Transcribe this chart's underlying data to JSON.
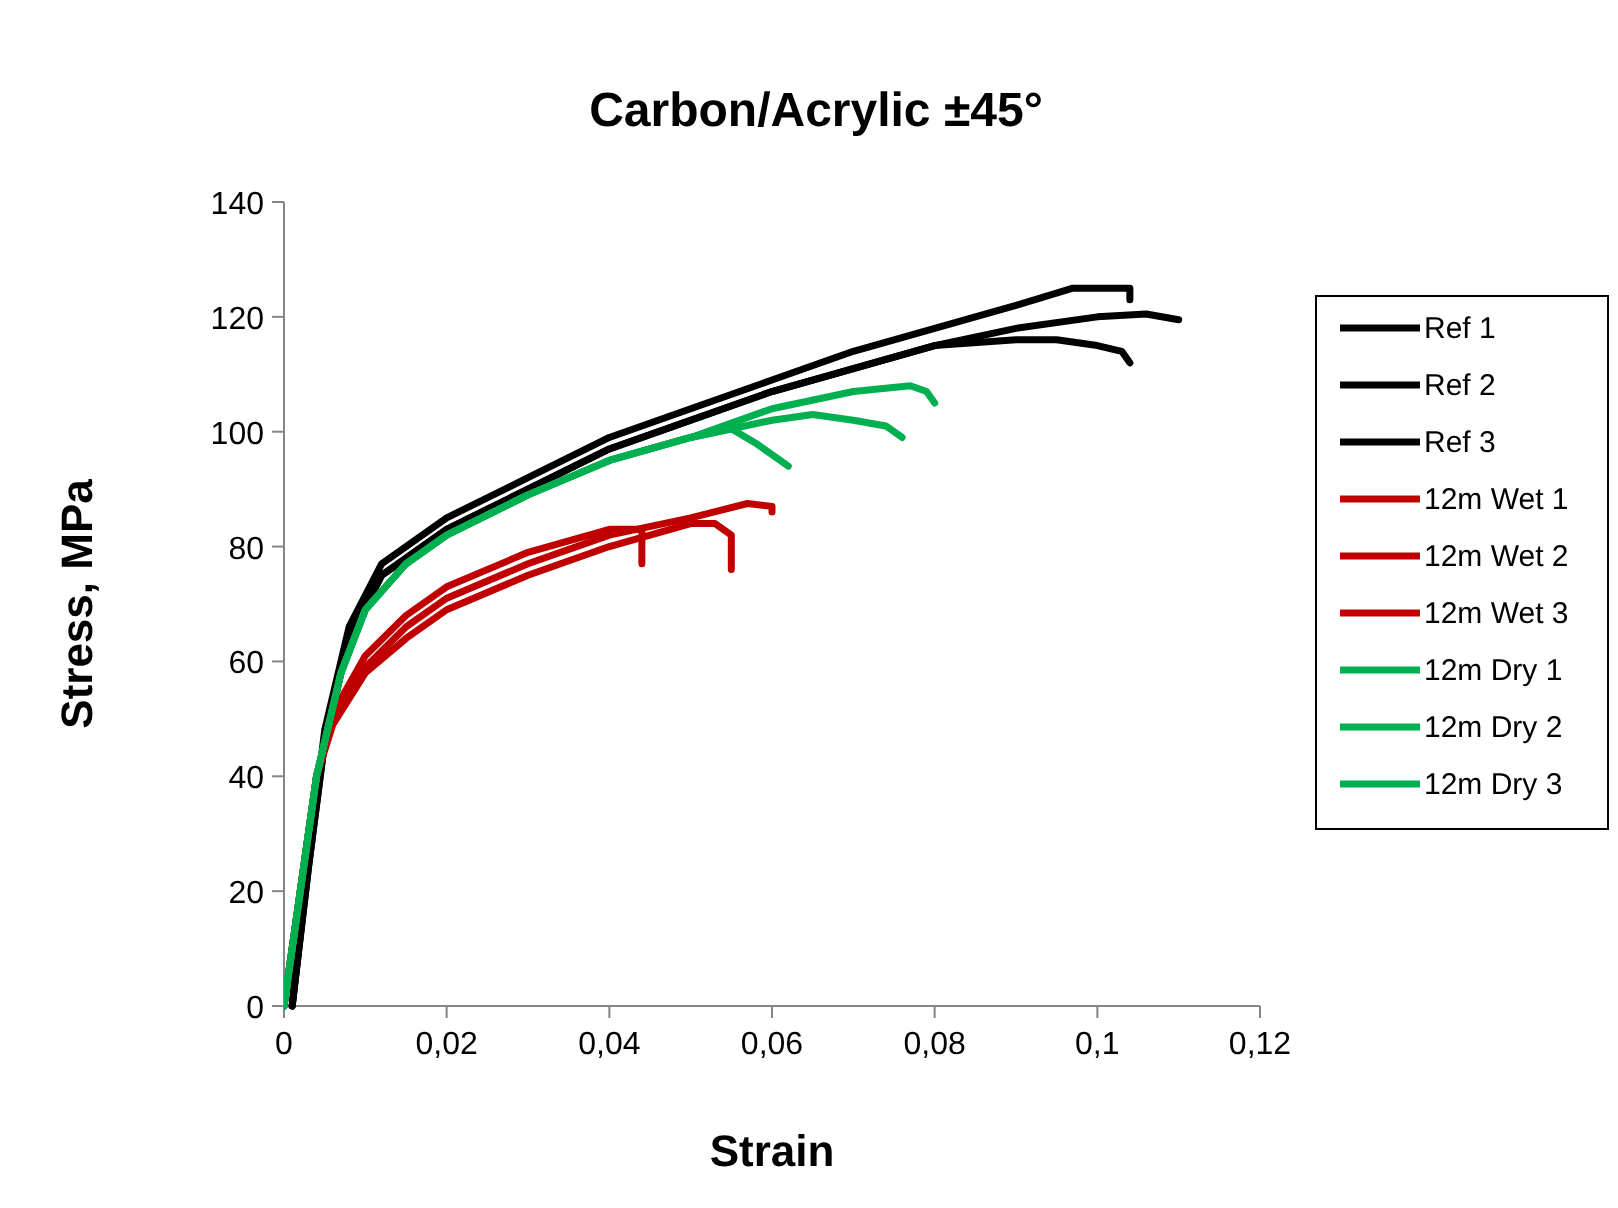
{
  "chart_data": {
    "type": "line",
    "title": "Carbon/Acrylic ±45°",
    "xlabel": "Strain",
    "ylabel": "Stress, MPa",
    "xlim": [
      0,
      0.12
    ],
    "ylim": [
      0,
      140
    ],
    "xticks": [
      0,
      {
        "value": 0.02,
        "label": "0,02"
      },
      {
        "value": 0.04,
        "label": "0,04"
      },
      {
        "value": 0.06,
        "label": "0,06"
      },
      {
        "value": 0.08,
        "label": "0,08"
      },
      {
        "value": 0.1,
        "label": "0,1"
      },
      {
        "value": 0.12,
        "label": "0,12"
      }
    ],
    "yticks": [
      0,
      20,
      40,
      60,
      80,
      100,
      120,
      140
    ],
    "grid": false,
    "legend": "right",
    "marker": "none",
    "line_style": "solid",
    "series": [
      {
        "name": "Ref 1",
        "color": "#000000",
        "x": [
          0.001,
          0.003,
          0.005,
          0.008,
          0.012,
          0.02,
          0.03,
          0.04,
          0.05,
          0.06,
          0.07,
          0.08,
          0.09,
          0.097,
          0.104,
          0.104
        ],
        "values": [
          0,
          25,
          48,
          66,
          77,
          85,
          92,
          99,
          104,
          109,
          114,
          118,
          122,
          125,
          125,
          123
        ]
      },
      {
        "name": "Ref 2",
        "color": "#000000",
        "x": [
          0.001,
          0.003,
          0.005,
          0.008,
          0.012,
          0.02,
          0.03,
          0.04,
          0.05,
          0.06,
          0.07,
          0.08,
          0.09,
          0.1,
          0.106,
          0.11
        ],
        "values": [
          0,
          24,
          46,
          64,
          75,
          83,
          90,
          97,
          102,
          107,
          111,
          115,
          118,
          120,
          120.5,
          119.5
        ]
      },
      {
        "name": "Ref 3",
        "color": "#000000",
        "x": [
          0.001,
          0.003,
          0.005,
          0.008,
          0.012,
          0.02,
          0.03,
          0.04,
          0.05,
          0.06,
          0.07,
          0.08,
          0.09,
          0.095,
          0.1,
          0.103,
          0.104
        ],
        "values": [
          0,
          24,
          46,
          64,
          75,
          83,
          90,
          97,
          102,
          107,
          111,
          115,
          116,
          116,
          115,
          114,
          112
        ]
      },
      {
        "name": "12m Wet 1",
        "color": "#c00000",
        "x": [
          0,
          0.002,
          0.004,
          0.006,
          0.01,
          0.015,
          0.02,
          0.03,
          0.04,
          0.05,
          0.057,
          0.06,
          0.06
        ],
        "values": [
          0,
          20,
          40,
          50,
          59,
          66,
          71,
          77,
          82,
          85,
          87.5,
          87,
          86
        ]
      },
      {
        "name": "12m Wet 2",
        "color": "#c00000",
        "x": [
          0,
          0.002,
          0.004,
          0.006,
          0.01,
          0.015,
          0.02,
          0.03,
          0.04,
          0.05,
          0.053,
          0.055,
          0.055
        ],
        "values": [
          0,
          20,
          40,
          49,
          58,
          64,
          69,
          75,
          80,
          84,
          84,
          82,
          76
        ]
      },
      {
        "name": "12m Wet 3",
        "color": "#c00000",
        "x": [
          0,
          0.002,
          0.004,
          0.006,
          0.01,
          0.015,
          0.02,
          0.03,
          0.04,
          0.044,
          0.044
        ],
        "values": [
          0,
          20,
          40,
          51,
          61,
          68,
          73,
          79,
          83,
          83,
          77
        ]
      },
      {
        "name": "12m Dry 1",
        "color": "#00b050",
        "x": [
          0,
          0.002,
          0.004,
          0.007,
          0.01,
          0.015,
          0.02,
          0.03,
          0.04,
          0.05,
          0.06,
          0.07,
          0.077,
          0.079,
          0.08
        ],
        "values": [
          0,
          20,
          40,
          58,
          69,
          77,
          82,
          89,
          95,
          99,
          104,
          107,
          108,
          107,
          105
        ]
      },
      {
        "name": "12m Dry 2",
        "color": "#00b050",
        "x": [
          0,
          0.002,
          0.004,
          0.007,
          0.01,
          0.015,
          0.02,
          0.03,
          0.04,
          0.05,
          0.06,
          0.065,
          0.07,
          0.074,
          0.076
        ],
        "values": [
          0,
          20,
          40,
          58,
          69,
          77,
          82,
          89,
          95,
          99,
          102,
          103,
          102,
          101,
          99
        ]
      },
      {
        "name": "12m Dry 3",
        "color": "#00b050",
        "x": [
          0,
          0.002,
          0.004,
          0.007,
          0.01,
          0.015,
          0.02,
          0.03,
          0.04,
          0.05,
          0.055,
          0.058,
          0.06,
          0.062
        ],
        "values": [
          0,
          20,
          40,
          58,
          69,
          77,
          82,
          89,
          95,
          99,
          100.5,
          98,
          96,
          94
        ]
      }
    ]
  }
}
